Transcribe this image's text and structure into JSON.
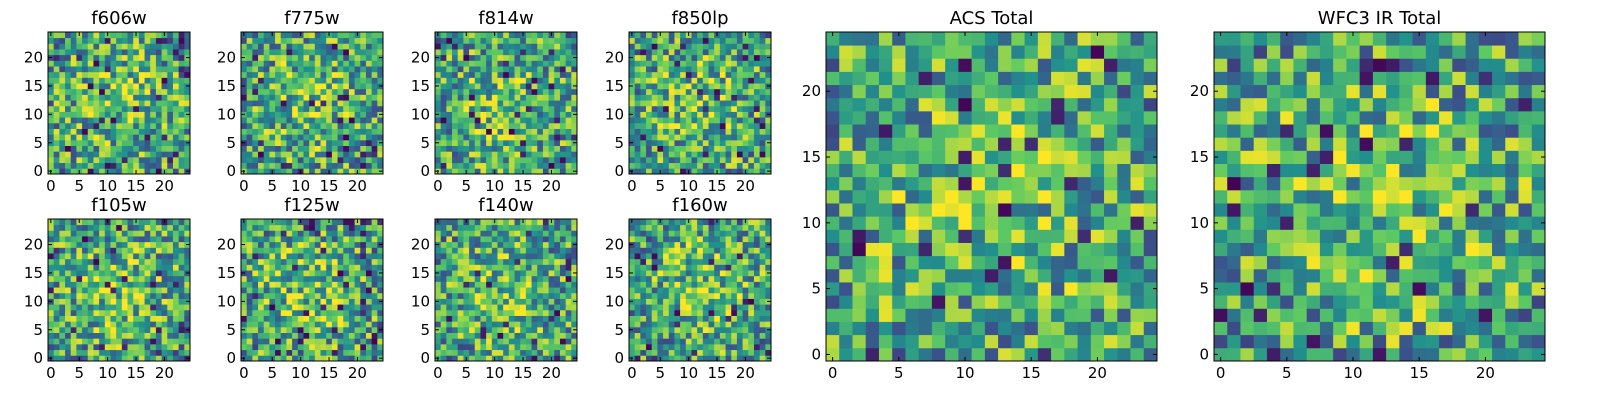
{
  "chart_data": [
    {
      "type": "heatmap",
      "title": "f606w",
      "colormap": "viridis",
      "grid": false,
      "xlim": [
        -0.5,
        24.5
      ],
      "ylim": [
        -0.5,
        24.5
      ],
      "origin": "lower",
      "xticks": [
        "0",
        "5",
        "10",
        "15",
        "20"
      ],
      "yticks": [
        "0",
        "5",
        "10",
        "15",
        "20"
      ],
      "shape": [
        25,
        25
      ],
      "values": "noise",
      "clim": [
        0,
        1
      ]
    },
    {
      "type": "heatmap",
      "title": "f775w",
      "colormap": "viridis",
      "grid": false,
      "xlim": [
        -0.5,
        24.5
      ],
      "ylim": [
        -0.5,
        24.5
      ],
      "origin": "lower",
      "xticks": [
        "0",
        "5",
        "10",
        "15",
        "20"
      ],
      "yticks": [
        "0",
        "5",
        "10",
        "15",
        "20"
      ],
      "shape": [
        25,
        25
      ],
      "values": "noise",
      "clim": [
        0,
        1
      ]
    },
    {
      "type": "heatmap",
      "title": "f814w",
      "colormap": "viridis",
      "grid": false,
      "xlim": [
        -0.5,
        24.5
      ],
      "ylim": [
        -0.5,
        24.5
      ],
      "origin": "lower",
      "xticks": [
        "0",
        "5",
        "10",
        "15",
        "20"
      ],
      "yticks": [
        "0",
        "5",
        "10",
        "15",
        "20"
      ],
      "shape": [
        25,
        25
      ],
      "values": "noise",
      "clim": [
        0,
        1
      ]
    },
    {
      "type": "heatmap",
      "title": "f850lp",
      "colormap": "viridis",
      "grid": false,
      "xlim": [
        -0.5,
        24.5
      ],
      "ylim": [
        -0.5,
        24.5
      ],
      "origin": "lower",
      "xticks": [
        "0",
        "5",
        "10",
        "15",
        "20"
      ],
      "yticks": [
        "0",
        "5",
        "10",
        "15",
        "20"
      ],
      "shape": [
        25,
        25
      ],
      "values": "noise",
      "clim": [
        0,
        1
      ]
    },
    {
      "type": "heatmap",
      "title": "f105w",
      "colormap": "viridis",
      "grid": false,
      "xlim": [
        -0.5,
        24.5
      ],
      "ylim": [
        -0.5,
        24.5
      ],
      "origin": "lower",
      "xticks": [
        "0",
        "5",
        "10",
        "15",
        "20"
      ],
      "yticks": [
        "0",
        "5",
        "10",
        "15",
        "20"
      ],
      "shape": [
        25,
        25
      ],
      "values": "noise",
      "clim": [
        0,
        1
      ]
    },
    {
      "type": "heatmap",
      "title": "f125w",
      "colormap": "viridis",
      "grid": false,
      "xlim": [
        -0.5,
        24.5
      ],
      "ylim": [
        -0.5,
        24.5
      ],
      "origin": "lower",
      "xticks": [
        "0",
        "5",
        "10",
        "15",
        "20"
      ],
      "yticks": [
        "0",
        "5",
        "10",
        "15",
        "20"
      ],
      "shape": [
        25,
        25
      ],
      "values": "noise",
      "clim": [
        0,
        1
      ]
    },
    {
      "type": "heatmap",
      "title": "f140w",
      "colormap": "viridis",
      "grid": false,
      "xlim": [
        -0.5,
        24.5
      ],
      "ylim": [
        -0.5,
        24.5
      ],
      "origin": "lower",
      "xticks": [
        "0",
        "5",
        "10",
        "15",
        "20"
      ],
      "yticks": [
        "0",
        "5",
        "10",
        "15",
        "20"
      ],
      "shape": [
        25,
        25
      ],
      "values": "noise",
      "clim": [
        0,
        1
      ]
    },
    {
      "type": "heatmap",
      "title": "f160w",
      "colormap": "viridis",
      "grid": false,
      "xlim": [
        -0.5,
        24.5
      ],
      "ylim": [
        -0.5,
        24.5
      ],
      "origin": "lower",
      "xticks": [
        "0",
        "5",
        "10",
        "15",
        "20"
      ],
      "yticks": [
        "0",
        "5",
        "10",
        "15",
        "20"
      ],
      "shape": [
        25,
        25
      ],
      "values": "noise",
      "clim": [
        0,
        1
      ]
    },
    {
      "type": "heatmap",
      "title": "ACS Total",
      "colormap": "viridis",
      "grid": false,
      "xlim": [
        -0.5,
        24.5
      ],
      "ylim": [
        -0.5,
        24.5
      ],
      "origin": "lower",
      "xticks": [
        "0",
        "5",
        "10",
        "15",
        "20"
      ],
      "yticks": [
        "0",
        "5",
        "10",
        "15",
        "20"
      ],
      "shape": [
        25,
        25
      ],
      "values": "noise",
      "clim": [
        0,
        1
      ]
    },
    {
      "type": "heatmap",
      "title": "WFC3 IR Total",
      "colormap": "viridis",
      "grid": false,
      "xlim": [
        -0.5,
        24.5
      ],
      "ylim": [
        -0.5,
        24.5
      ],
      "origin": "lower",
      "xticks": [
        "0",
        "5",
        "10",
        "15",
        "20"
      ],
      "yticks": [
        "0",
        "5",
        "10",
        "15",
        "20"
      ],
      "shape": [
        25,
        25
      ],
      "values": "noise",
      "clim": [
        0,
        1
      ]
    }
  ],
  "colors": {
    "viridis_stops": [
      "#440154",
      "#3b528b",
      "#21908d",
      "#5dc963",
      "#fde725"
    ],
    "frame": "#000000",
    "background": "#ffffff"
  }
}
